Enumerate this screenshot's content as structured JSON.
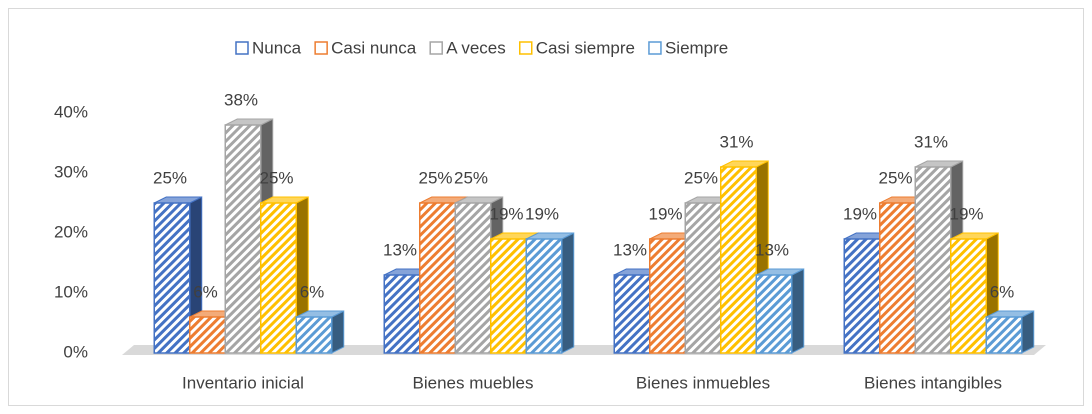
{
  "chart_data": {
    "type": "bar3d",
    "categories": [
      "Inventario inicial",
      "Bienes muebles",
      "Bienes inmuebles",
      "Bienes intangibles"
    ],
    "series": [
      {
        "name": "Nunca",
        "color": "#4472c4",
        "values": [
          25,
          13,
          13,
          19
        ],
        "value_labels": [
          "25%",
          "13%",
          "13%",
          "19%"
        ]
      },
      {
        "name": "Casi nunca",
        "color": "#ed7d31",
        "values": [
          6,
          25,
          19,
          25
        ],
        "value_labels": [
          "6%",
          "25%",
          "19%",
          "25%"
        ]
      },
      {
        "name": "A veces",
        "color": "#a5a5a5",
        "values": [
          38,
          25,
          25,
          31
        ],
        "value_labels": [
          "38%",
          "25%",
          "25%",
          "31%"
        ]
      },
      {
        "name": "Casi siempre",
        "color": "#ffc000",
        "values": [
          25,
          19,
          31,
          19
        ],
        "value_labels": [
          "25%",
          "19%",
          "31%",
          "19%"
        ]
      },
      {
        "name": "Siempre",
        "color": "#5b9bd5",
        "values": [
          6,
          19,
          13,
          6
        ],
        "value_labels": [
          "6%",
          "19%",
          "13%",
          "6%"
        ]
      }
    ],
    "ylim": [
      0,
      40
    ],
    "yticks": [
      {
        "value": 0,
        "label": "0%"
      },
      {
        "value": 10,
        "label": "10%"
      },
      {
        "value": 20,
        "label": "20%"
      },
      {
        "value": 30,
        "label": "30%"
      },
      {
        "value": 40,
        "label": "40%"
      }
    ],
    "legend": "top"
  }
}
